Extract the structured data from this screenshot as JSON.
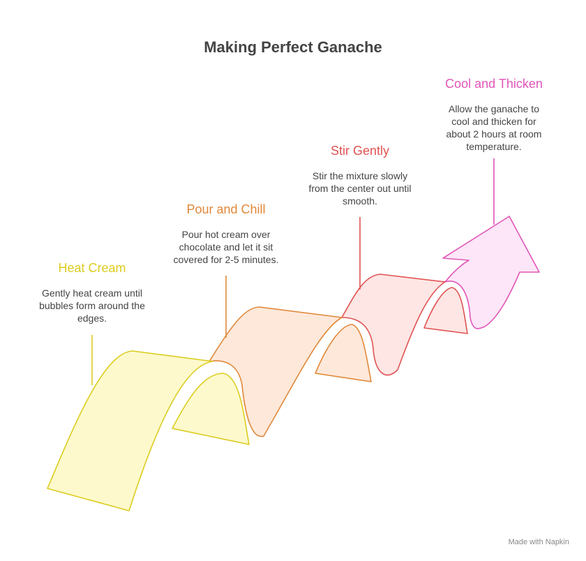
{
  "title": "Making Perfect Ganache",
  "steps": [
    {
      "title": "Heat Cream",
      "description": [
        "Gently heat cream until",
        "bubbles form around the",
        "edges."
      ]
    },
    {
      "title": "Pour and Chill",
      "description": [
        "Pour hot cream over",
        "chocolate and let it sit",
        "covered for 2-5 minutes."
      ]
    },
    {
      "title": "Stir Gently",
      "description": [
        "Stir the mixture slowly",
        "from the center out until",
        "smooth."
      ]
    },
    {
      "title": "Cool and Thicken",
      "description": [
        "Allow the ganache to",
        "cool and thicken for",
        "about 2 hours at room",
        "temperature."
      ]
    }
  ],
  "footer": "Made with Napkin"
}
